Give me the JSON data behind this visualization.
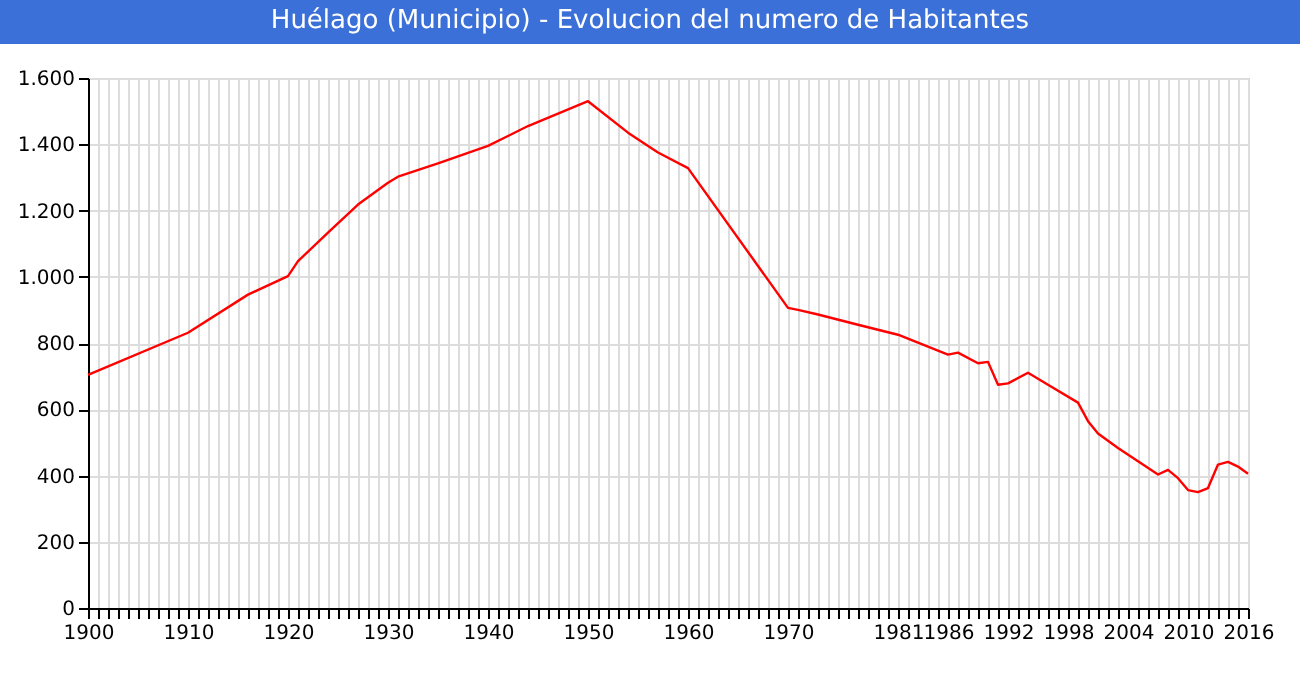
{
  "chart_data": {
    "type": "line",
    "title": "Huélago (Municipio) - Evolucion del numero de Habitantes",
    "x": [
      1900,
      1910,
      1916,
      1920,
      1921,
      1924,
      1927,
      1930,
      1931,
      1935,
      1940,
      1944,
      1950,
      1954,
      1957,
      1960,
      1970,
      1971,
      1973,
      1977,
      1981,
      1986,
      1987,
      1989,
      1990,
      1991,
      1992,
      1994,
      1996,
      1999,
      2000,
      2001,
      2003,
      2005,
      2007,
      2008,
      2009,
      2010,
      2011,
      2012,
      2013,
      2014,
      2015,
      2016
    ],
    "series": [
      {
        "color": "#ff0000",
        "values": [
          704,
          831,
          946,
          1002,
          1047,
          1133,
          1218,
          1284,
          1302,
          1342,
          1395,
          1455,
          1530,
          1435,
          1375,
          1328,
          906,
          900,
          886,
          855,
          825,
          765,
          771,
          739,
          743,
          674,
          678,
          710,
          674,
          620,
          564,
          527,
          483,
          443,
          403,
          417,
          392,
          356,
          350,
          362,
          433,
          441,
          427,
          405
        ]
      }
    ],
    "xlim": [
      1900,
      2016
    ],
    "xticks": [
      1900,
      {
        "value": 1901,
        "label": null
      },
      {
        "value": 1902,
        "label": null
      },
      {
        "value": 1903,
        "label": null
      },
      {
        "value": 1904,
        "label": null
      },
      {
        "value": 1905,
        "label": null
      },
      {
        "value": 1906,
        "label": null
      },
      {
        "value": 1907,
        "label": null
      },
      {
        "value": 1908,
        "label": null
      },
      {
        "value": 1909,
        "label": null
      },
      1910,
      {
        "value": 1911,
        "label": null
      },
      {
        "value": 1912,
        "label": null
      },
      {
        "value": 1913,
        "label": null
      },
      {
        "value": 1914,
        "label": null
      },
      {
        "value": 1915,
        "label": null
      },
      {
        "value": 1916,
        "label": null
      },
      {
        "value": 1917,
        "label": null
      },
      {
        "value": 1918,
        "label": null
      },
      {
        "value": 1919,
        "label": null
      },
      1920,
      {
        "value": 1921,
        "label": null
      },
      {
        "value": 1922,
        "label": null
      },
      {
        "value": 1923,
        "label": null
      },
      {
        "value": 1924,
        "label": null
      },
      {
        "value": 1925,
        "label": null
      },
      {
        "value": 1926,
        "label": null
      },
      {
        "value": 1927,
        "label": null
      },
      {
        "value": 1928,
        "label": null
      },
      {
        "value": 1929,
        "label": null
      },
      1930,
      {
        "value": 1931,
        "label": null
      },
      {
        "value": 1932,
        "label": null
      },
      {
        "value": 1933,
        "label": null
      },
      {
        "value": 1934,
        "label": null
      },
      {
        "value": 1935,
        "label": null
      },
      {
        "value": 1936,
        "label": null
      },
      {
        "value": 1937,
        "label": null
      },
      {
        "value": 1938,
        "label": null
      },
      {
        "value": 1939,
        "label": null
      },
      1940,
      {
        "value": 1941,
        "label": null
      },
      {
        "value": 1942,
        "label": null
      },
      {
        "value": 1943,
        "label": null
      },
      {
        "value": 1944,
        "label": null
      },
      {
        "value": 1945,
        "label": null
      },
      {
        "value": 1946,
        "label": null
      },
      {
        "value": 1947,
        "label": null
      },
      {
        "value": 1948,
        "label": null
      },
      {
        "value": 1949,
        "label": null
      },
      1950,
      {
        "value": 1951,
        "label": null
      },
      {
        "value": 1952,
        "label": null
      },
      {
        "value": 1953,
        "label": null
      },
      {
        "value": 1954,
        "label": null
      },
      {
        "value": 1955,
        "label": null
      },
      {
        "value": 1956,
        "label": null
      },
      {
        "value": 1957,
        "label": null
      },
      {
        "value": 1958,
        "label": null
      },
      {
        "value": 1959,
        "label": null
      },
      1960,
      {
        "value": 1961,
        "label": null
      },
      {
        "value": 1962,
        "label": null
      },
      {
        "value": 1963,
        "label": null
      },
      {
        "value": 1964,
        "label": null
      },
      {
        "value": 1965,
        "label": null
      },
      {
        "value": 1966,
        "label": null
      },
      {
        "value": 1967,
        "label": null
      },
      {
        "value": 1968,
        "label": null
      },
      {
        "value": 1969,
        "label": null
      },
      1970,
      {
        "value": 1971,
        "label": null
      },
      {
        "value": 1972,
        "label": null
      },
      {
        "value": 1973,
        "label": null
      },
      {
        "value": 1974,
        "label": null
      },
      {
        "value": 1975,
        "label": null
      },
      {
        "value": 1976,
        "label": null
      },
      {
        "value": 1977,
        "label": null
      },
      {
        "value": 1978,
        "label": null
      },
      {
        "value": 1979,
        "label": null
      },
      {
        "value": 1980,
        "label": null
      },
      1981,
      {
        "value": 1982,
        "label": null
      },
      {
        "value": 1983,
        "label": null
      },
      {
        "value": 1984,
        "label": null
      },
      {
        "value": 1985,
        "label": null
      },
      1986,
      {
        "value": 1987,
        "label": null
      },
      {
        "value": 1988,
        "label": null
      },
      {
        "value": 1989,
        "label": null
      },
      {
        "value": 1990,
        "label": null
      },
      {
        "value": 1991,
        "label": null
      },
      1992,
      {
        "value": 1993,
        "label": null
      },
      {
        "value": 1994,
        "label": null
      },
      {
        "value": 1995,
        "label": null
      },
      {
        "value": 1996,
        "label": null
      },
      {
        "value": 1997,
        "label": null
      },
      1998,
      {
        "value": 1999,
        "label": null
      },
      {
        "value": 2000,
        "label": null
      },
      {
        "value": 2001,
        "label": null
      },
      {
        "value": 2002,
        "label": null
      },
      {
        "value": 2003,
        "label": null
      },
      2004,
      {
        "value": 2005,
        "label": null
      },
      {
        "value": 2006,
        "label": null
      },
      {
        "value": 2007,
        "label": null
      },
      {
        "value": 2008,
        "label": null
      },
      {
        "value": 2009,
        "label": null
      },
      2010,
      {
        "value": 2011,
        "label": null
      },
      {
        "value": 2012,
        "label": null
      },
      {
        "value": 2013,
        "label": null
      },
      {
        "value": 2014,
        "label": null
      },
      {
        "value": 2015,
        "label": null
      },
      2016
    ],
    "ylim": [
      0,
      1600
    ],
    "yticks": [
      0,
      200,
      400,
      600,
      800,
      {
        "value": 1000,
        "label": "1.000"
      },
      {
        "value": 1200,
        "label": "1.200"
      },
      {
        "value": 1400,
        "label": "1.400"
      },
      {
        "value": 1600,
        "label": "1.600"
      }
    ],
    "grid": true
  }
}
